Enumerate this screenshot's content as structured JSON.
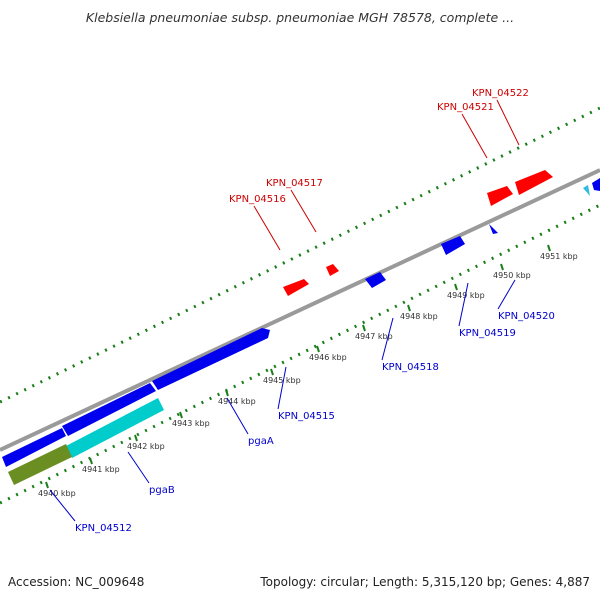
{
  "title": "Klebsiella pneumoniae subsp. pneumoniae MGH 78578, complete ...",
  "footer": {
    "accession": "Accession: NC_009648",
    "topology": "Topology: circular; Length: 5,315,120 bp; Genes: 4,887"
  },
  "colors": {
    "backbone": "#888888",
    "tick": "#1a7f1a",
    "forward_gene": "#ff0000",
    "reverse_gene": "#0000ee",
    "pgaB": "#00cccc",
    "olive_gene": "#6b8e23",
    "forward_label": "#cc0000",
    "reverse_label": "#0000cc"
  },
  "scale_labels": [
    "4940 kbp",
    "4941 kbp",
    "4942 kbp",
    "4943 kbp",
    "4944 kbp",
    "4945 kbp",
    "4946 kbp",
    "4947 kbp",
    "4948 kbp",
    "4949 kbp",
    "4950 kbp",
    "4951 kbp"
  ],
  "forward_gene_labels": [
    "KPN_04516",
    "KPN_04517",
    "KPN_04521",
    "KPN_04522"
  ],
  "reverse_gene_labels": [
    "KPN_04512",
    "pgaB",
    "pgaA",
    "KPN_04515",
    "KPN_04518",
    "KPN_04519",
    "KPN_04520"
  ]
}
